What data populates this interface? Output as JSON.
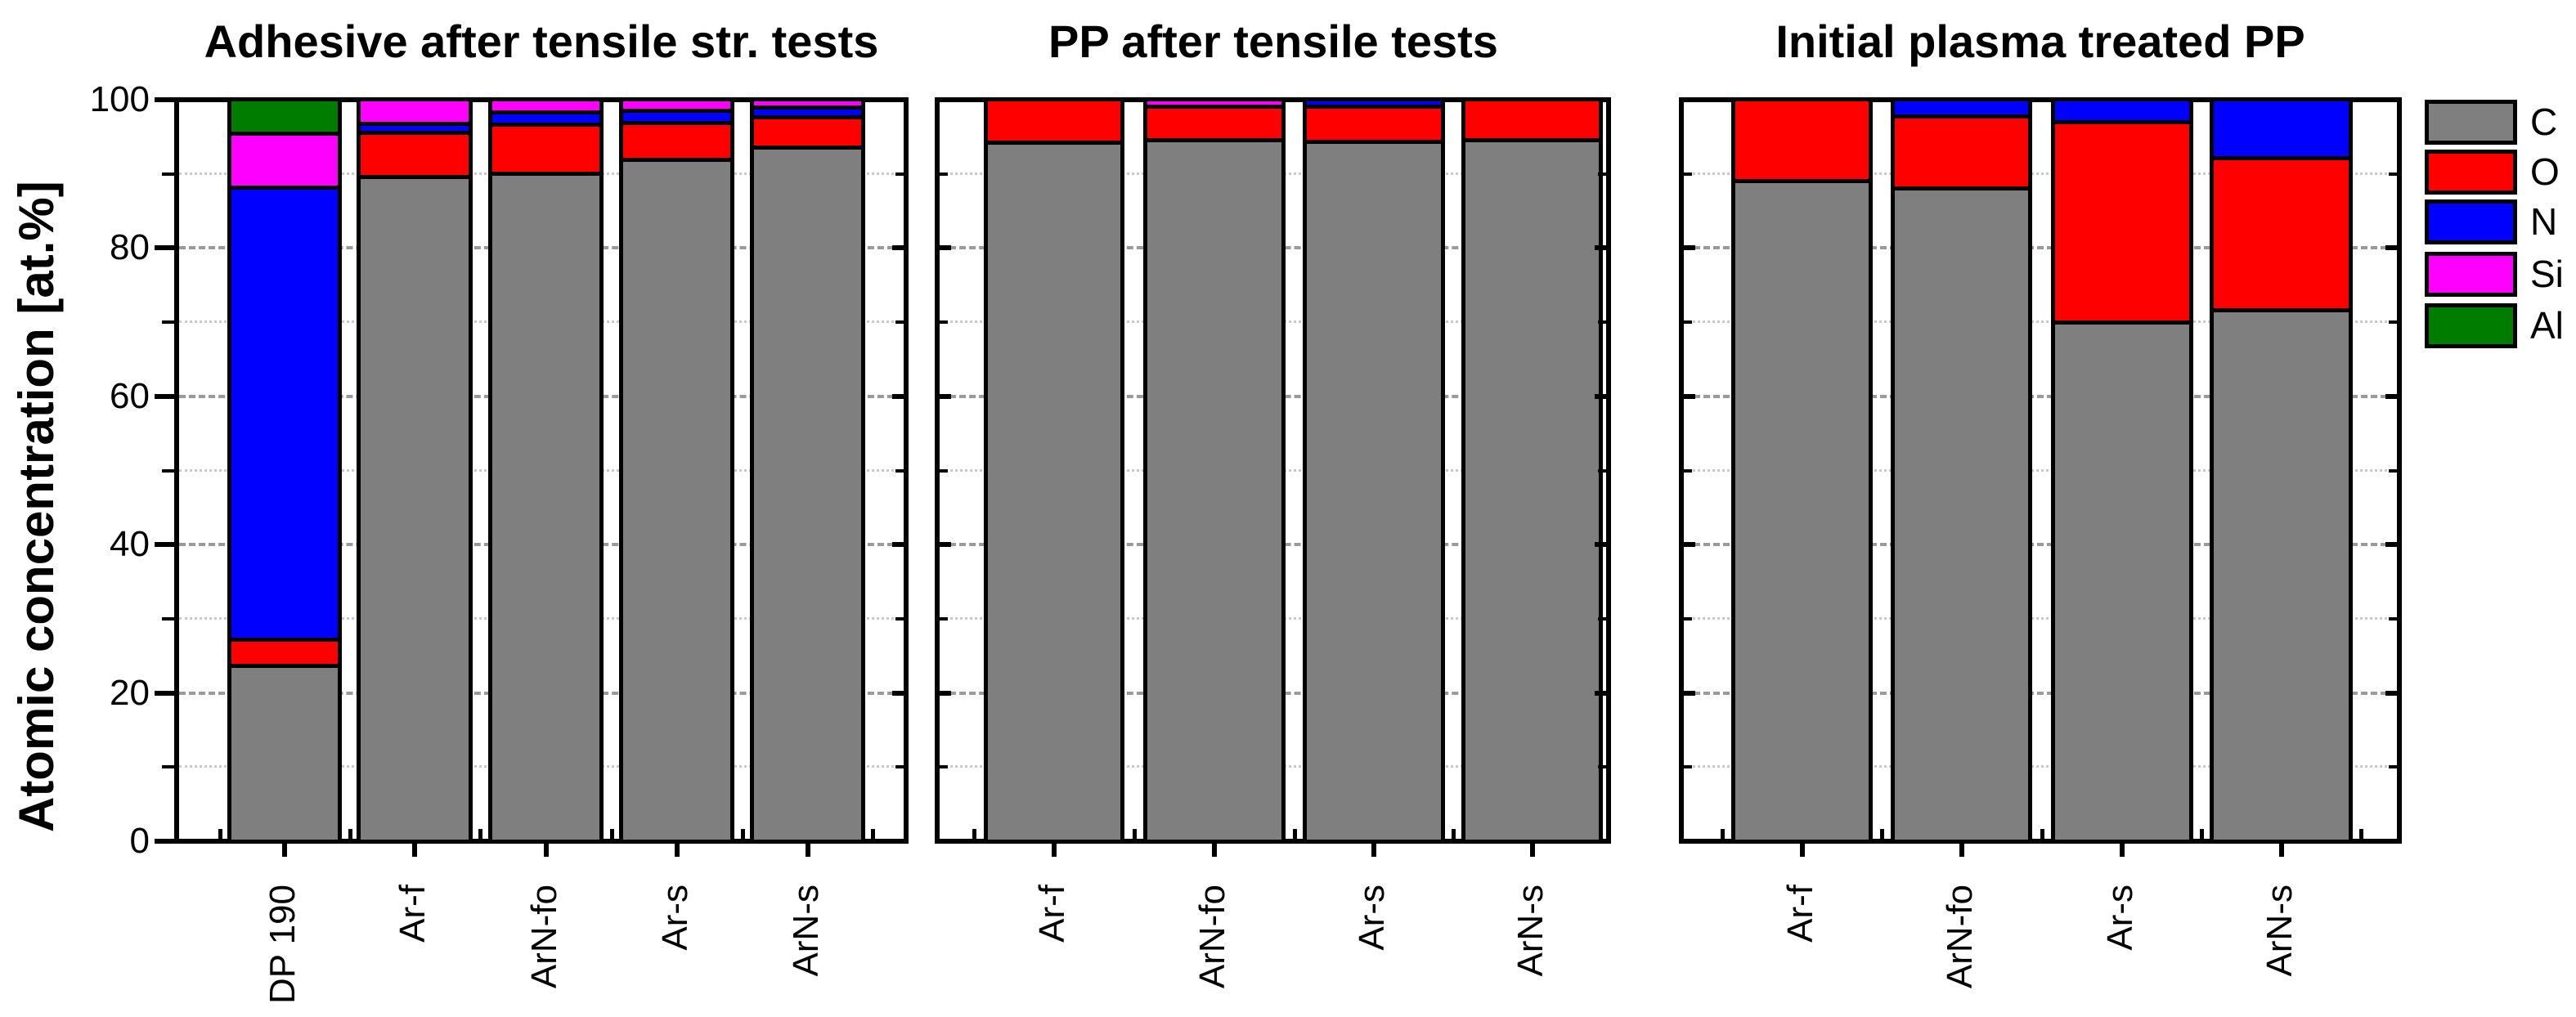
{
  "figure": {
    "ylabel": "Atomic concentration [at.%]",
    "background": "#ffffff",
    "axis_color": "#000000",
    "gridline_major_color": "#9a9a9a",
    "gridline_minor_color": "#c9c9c9"
  },
  "legend": {
    "position": "top-right",
    "entries": [
      {
        "label": "C",
        "color": "#7f7f7f"
      },
      {
        "label": "O",
        "color": "#fe0000"
      },
      {
        "label": "N",
        "color": "#0000fe"
      },
      {
        "label": "Si",
        "color": "#fe00fe"
      },
      {
        "label": "Al",
        "color": "#007d00"
      }
    ]
  },
  "chart_data": [
    {
      "type": "bar",
      "stacked": true,
      "title": "Adhesive after tensile str. tests",
      "categories": [
        "DP 190",
        "Ar-f",
        "ArN-fo",
        "Ar-s",
        "ArN-s"
      ],
      "series": [
        {
          "name": "C",
          "values": [
            23.8,
            91.0,
            91.4,
            93.3,
            95.0
          ]
        },
        {
          "name": "O",
          "values": [
            3.0,
            5.5,
            6.2,
            4.6,
            3.6
          ]
        },
        {
          "name": "N",
          "values": [
            62.1,
            0.7,
            1.2,
            1.1,
            0.8
          ]
        },
        {
          "name": "Si",
          "values": [
            6.9,
            2.8,
            1.2,
            1.0,
            0.6
          ]
        },
        {
          "name": "Al",
          "values": [
            4.2,
            0,
            0,
            0,
            0
          ]
        }
      ],
      "ylabel": "Atomic concentration [at.%]",
      "ylim": [
        0,
        100
      ],
      "yticks": [
        0,
        20,
        40,
        60,
        80,
        100
      ],
      "grid": "dashed gray lines every 20, dotted light lines every 10",
      "legend_position": "outside right of third panel"
    },
    {
      "type": "bar",
      "stacked": true,
      "title": "PP after tensile tests",
      "categories": [
        "Ar-f",
        "ArN-fo",
        "Ar-s",
        "ArN-s"
      ],
      "series": [
        {
          "name": "C",
          "values": [
            94.6,
            95.5,
            95.3,
            95.0
          ]
        },
        {
          "name": "O",
          "values": [
            5.4,
            4.0,
            4.2,
            5.0
          ]
        },
        {
          "name": "N",
          "values": [
            0,
            0,
            0.5,
            0
          ]
        },
        {
          "name": "Si",
          "values": [
            0,
            0.5,
            0,
            0
          ]
        },
        {
          "name": "Al",
          "values": [
            0,
            0,
            0,
            0
          ]
        }
      ],
      "ylim": [
        0,
        100
      ],
      "yticks": [
        0,
        20,
        40,
        60,
        80,
        100
      ],
      "grid": "dashed gray lines every 20, dotted light lines every 10"
    },
    {
      "type": "bar",
      "stacked": true,
      "title": "Initial plasma treated PP",
      "categories": [
        "Ar-f",
        "ArN-fo",
        "Ar-s",
        "ArN-s"
      ],
      "series": [
        {
          "name": "C",
          "values": [
            89.4,
            88.9,
            70.5,
            72.2
          ]
        },
        {
          "name": "O",
          "values": [
            10.6,
            9.3,
            26.9,
            20.3
          ]
        },
        {
          "name": "N",
          "values": [
            0,
            1.8,
            2.6,
            7.5
          ]
        },
        {
          "name": "Si",
          "values": [
            0,
            0,
            0,
            0
          ]
        },
        {
          "name": "Al",
          "values": [
            0,
            0,
            0,
            0
          ]
        }
      ],
      "ylim": [
        0,
        100
      ],
      "yticks": [
        0,
        20,
        40,
        60,
        80,
        100
      ],
      "grid": "dashed gray lines every 20, dotted light lines every 10"
    }
  ]
}
